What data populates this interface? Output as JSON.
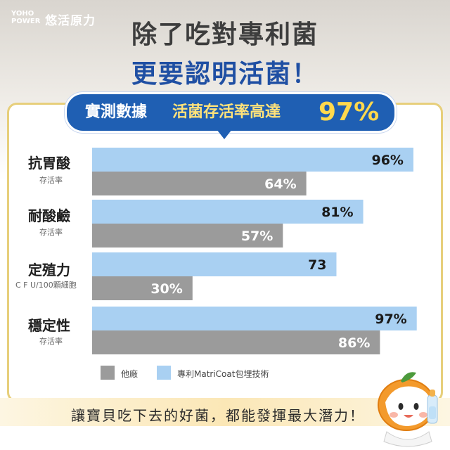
{
  "brand": {
    "logo_line1": "YOHO",
    "logo_line2": "POWER",
    "name": "悠活原力"
  },
  "headline": {
    "line1": "除了吃對專利菌",
    "line2": "更要認明活菌！"
  },
  "banner": {
    "part1": "實測數據",
    "part2": "活菌存活率高達",
    "highlight": "97%"
  },
  "categories": [
    {
      "label": "抗胃酸",
      "sub": "存活率"
    },
    {
      "label": "耐酸鹼",
      "sub": "存活率"
    },
    {
      "label": "定殖力",
      "sub": "C F U/100顆細胞"
    },
    {
      "label": "穩定性",
      "sub": "存活率"
    }
  ],
  "legend": {
    "other": "他廠",
    "patent": "專利MatriCoat包埋技術"
  },
  "footer": "讓寶貝吃下去的好菌，都能發揮最大潛力！",
  "colors": {
    "patent": "#a9d0f2",
    "other": "#9b9b9b",
    "accent": "#1f5fb3",
    "highlight": "#ffd84d"
  },
  "chart_data": {
    "type": "bar",
    "categories": [
      "抗胃酸",
      "耐酸鹼",
      "定殖力",
      "穩定性"
    ],
    "series": [
      {
        "name": "專利MatriCoat包埋技術",
        "values": [
          96,
          81,
          73,
          97
        ],
        "labels": [
          "96%",
          "81%",
          "73",
          "97%"
        ]
      },
      {
        "name": "他廠",
        "values": [
          64,
          57,
          30,
          86
        ],
        "labels": [
          "64%",
          "57%",
          "30%",
          "86%"
        ]
      }
    ],
    "orientation": "horizontal",
    "legend_position": "bottom-left"
  }
}
